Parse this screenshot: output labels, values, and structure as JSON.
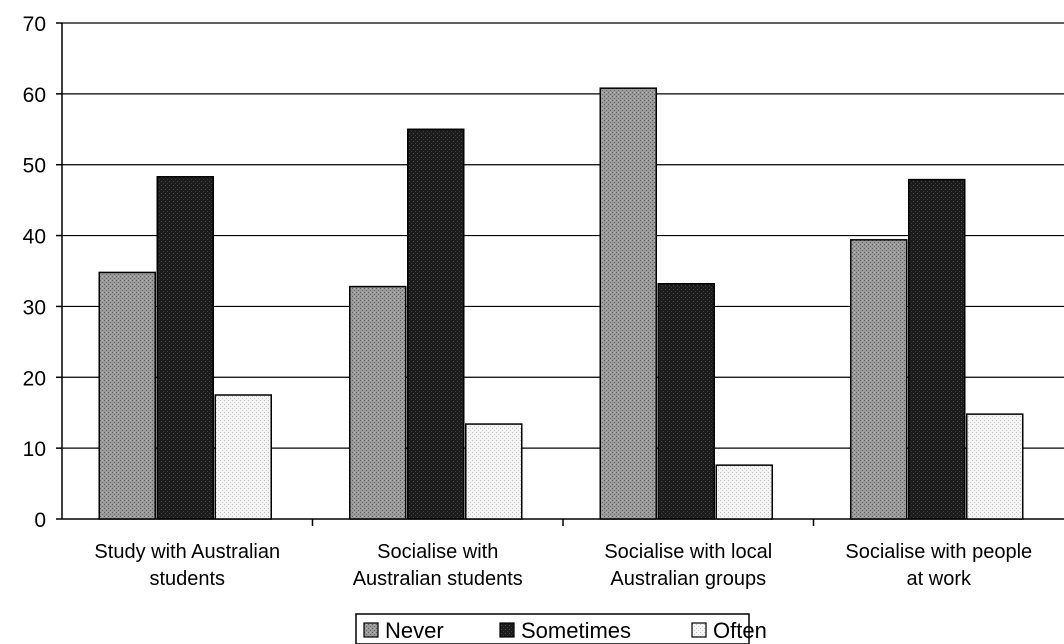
{
  "chart_data": {
    "type": "bar",
    "title": "",
    "xlabel": "",
    "ylabel": "",
    "ylim": [
      0,
      70
    ],
    "yticks": [
      0,
      10,
      20,
      30,
      40,
      50,
      60,
      70
    ],
    "grid": true,
    "legend_position": "bottom",
    "categories": [
      [
        "Study with Australian",
        "students"
      ],
      [
        "Socialise with",
        "Australian students"
      ],
      [
        "Socialise with local",
        "Australian groups"
      ],
      [
        "Socialise with people",
        "at work"
      ]
    ],
    "series": [
      {
        "name": "Never",
        "values": [
          34.8,
          32.8,
          60.8,
          39.4
        ],
        "color": "#8a8a8a"
      },
      {
        "name": "Sometimes",
        "values": [
          48.3,
          55.0,
          33.2,
          47.9
        ],
        "color": "#1a1a1a"
      },
      {
        "name": "Often",
        "values": [
          17.5,
          13.4,
          7.6,
          14.8
        ],
        "color": "#f2f2f2"
      }
    ]
  }
}
